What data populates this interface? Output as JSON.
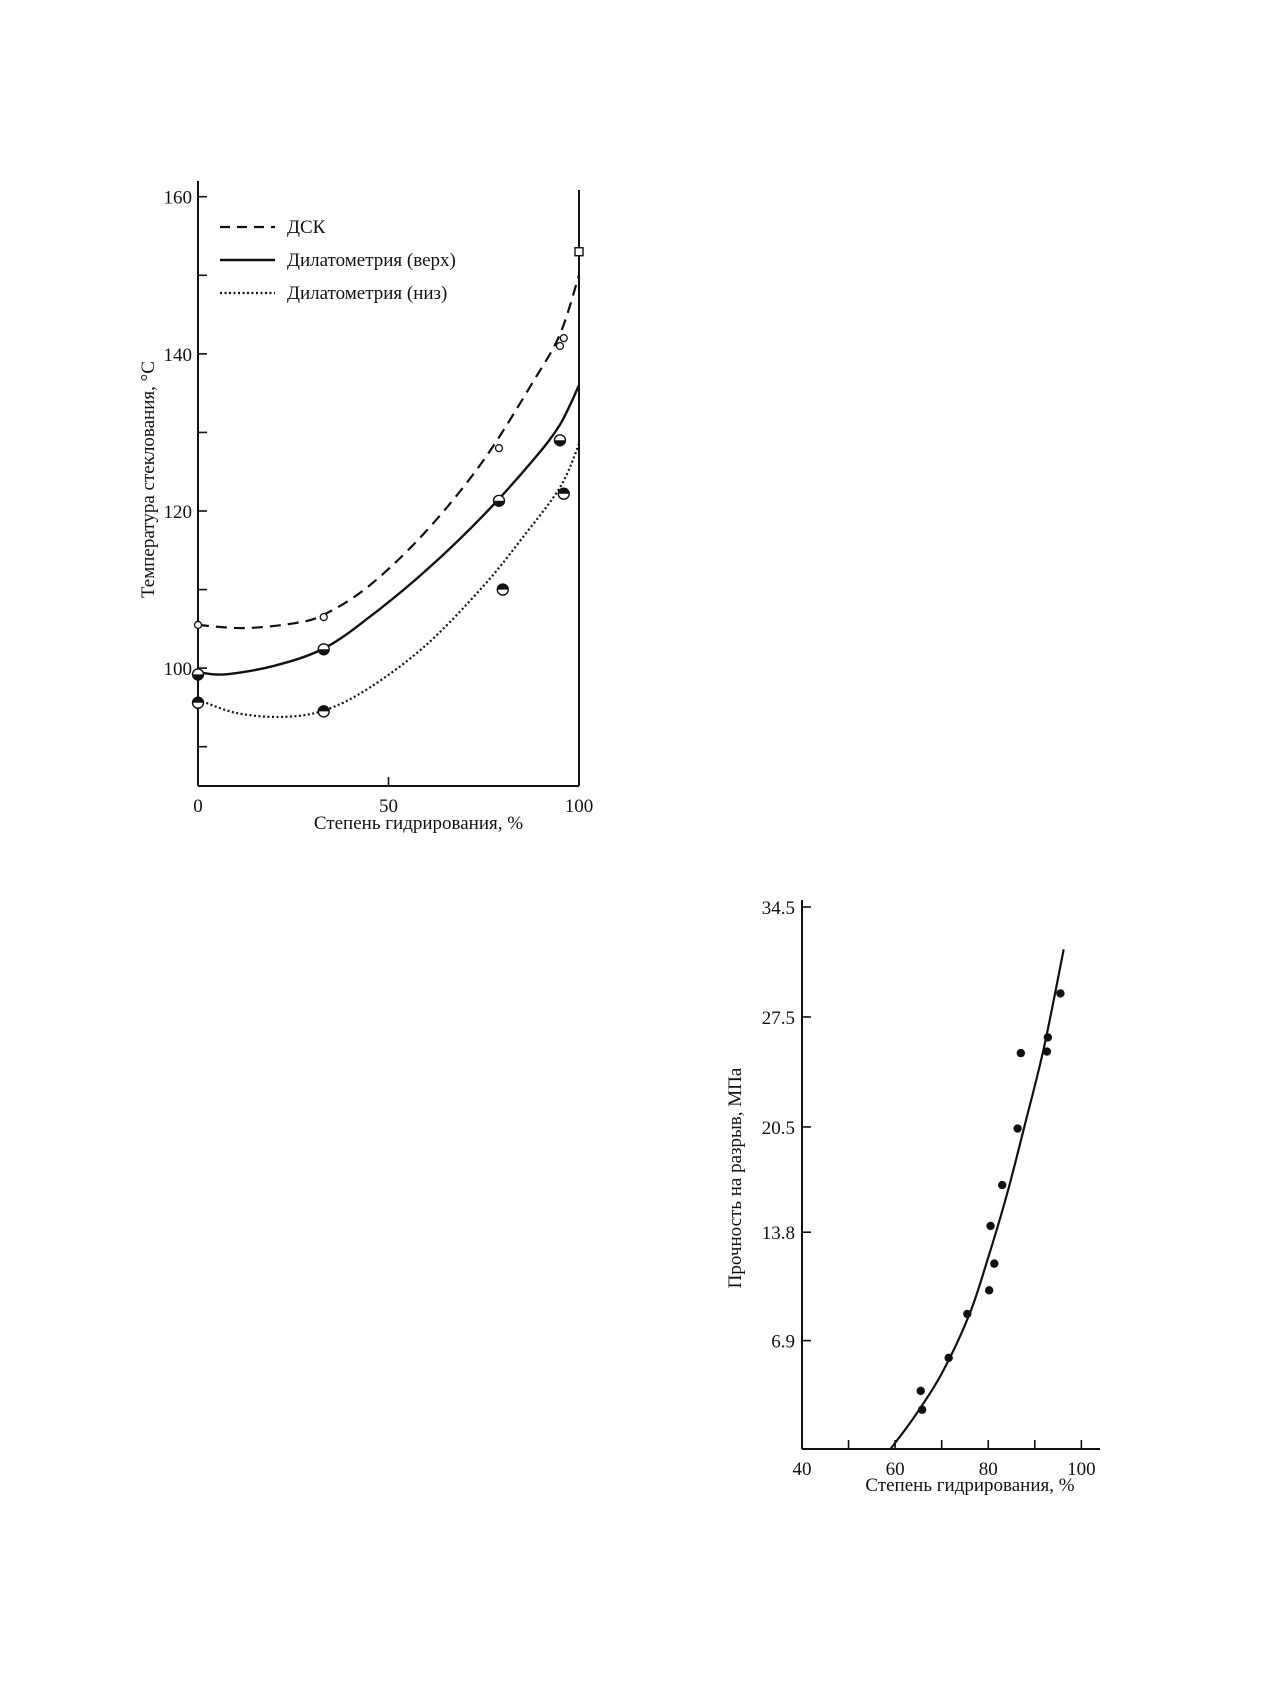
{
  "chart_data": [
    {
      "type": "line",
      "title": "",
      "xlabel": "Степень гидрирования, %",
      "ylabel": "Температура стеклования, °C",
      "xlim": [
        0,
        100
      ],
      "ylim": [
        85,
        162
      ],
      "xticks": [
        0,
        50,
        100
      ],
      "yticks": [
        100,
        120,
        140,
        160
      ],
      "x_tick_labels": [
        "0",
        "50",
        "100"
      ],
      "y_tick_labels": [
        "100",
        "120",
        "140",
        "160"
      ],
      "grid": false,
      "legend_position": "top-left",
      "series": [
        {
          "name": "ДСК",
          "style": "dashed",
          "curve": [
            [
              0,
              105.5
            ],
            [
              12,
              105.1
            ],
            [
              25,
              105.7
            ],
            [
              33,
              106.8
            ],
            [
              45,
              110.5
            ],
            [
              60,
              117.5
            ],
            [
              75,
              126.5
            ],
            [
              88,
              136.5
            ],
            [
              95,
              142.5
            ],
            [
              100,
              150
            ]
          ],
          "points": [
            [
              0,
              105.5
            ],
            [
              33,
              106.5
            ],
            [
              79,
              128
            ],
            [
              95,
              141
            ],
            [
              96,
              142
            ],
            [
              100,
              153
            ]
          ]
        },
        {
          "name": "Дилатометрия (верх)",
          "style": "solid",
          "curve": [
            [
              0,
              99.5
            ],
            [
              7,
              99.2
            ],
            [
              20,
              100.3
            ],
            [
              33,
              102.5
            ],
            [
              45,
              106.5
            ],
            [
              60,
              112.5
            ],
            [
              75,
              119.5
            ],
            [
              88,
              126.5
            ],
            [
              95,
              131
            ],
            [
              100,
              136
            ]
          ],
          "points": [
            [
              0,
              99.2
            ],
            [
              33,
              102.4
            ],
            [
              79,
              121.3
            ],
            [
              95,
              129
            ]
          ]
        },
        {
          "name": "Дилатометрия (низ)",
          "style": "dotted",
          "curve": [
            [
              0,
              96
            ],
            [
              10,
              94.3
            ],
            [
              22,
              93.8
            ],
            [
              33,
              94.6
            ],
            [
              45,
              97.5
            ],
            [
              60,
              103
            ],
            [
              75,
              110.5
            ],
            [
              85,
              116.5
            ],
            [
              95,
              123
            ],
            [
              100,
              128.5
            ]
          ],
          "points": [
            [
              0,
              95.6
            ],
            [
              33,
              94.5
            ],
            [
              80,
              110
            ],
            [
              96,
              122.2
            ]
          ]
        }
      ]
    },
    {
      "type": "scatter",
      "title": "",
      "xlabel": "Степень гидрирования, %",
      "ylabel": "Прочность на разрыв, МПа",
      "xlim": [
        40,
        104
      ],
      "ylim": [
        0,
        35
      ],
      "xticks": [
        40,
        60,
        80,
        100
      ],
      "x_minor_ticks": [
        50,
        70,
        90
      ],
      "yticks": [
        6.9,
        13.8,
        20.5,
        27.5,
        34.5
      ],
      "x_tick_labels": [
        "40",
        "60",
        "80",
        "100"
      ],
      "y_tick_labels": [
        "6.9",
        "13.8",
        "20.5",
        "27.5",
        "34.5"
      ],
      "grid": false,
      "series": [
        {
          "points": [
            [
              65.5,
              3.7
            ],
            [
              65.8,
              2.5
            ],
            [
              71.5,
              5.8
            ],
            [
              75.5,
              8.6
            ],
            [
              80.2,
              10.1
            ],
            [
              80.5,
              14.2
            ],
            [
              81.3,
              11.8
            ],
            [
              83,
              16.8
            ],
            [
              86.3,
              20.4
            ],
            [
              87,
              25.2
            ],
            [
              92.6,
              25.3
            ],
            [
              92.8,
              26.2
            ],
            [
              95.5,
              29
            ]
          ],
          "fit_curve": [
            [
              59,
              0
            ],
            [
              64,
              2
            ],
            [
              70,
              4.8
            ],
            [
              76,
              8.6
            ],
            [
              80,
              12.2
            ],
            [
              84,
              16.2
            ],
            [
              88,
              20.8
            ],
            [
              92,
              25.6
            ],
            [
              96.2,
              31.8
            ]
          ]
        }
      ]
    }
  ]
}
